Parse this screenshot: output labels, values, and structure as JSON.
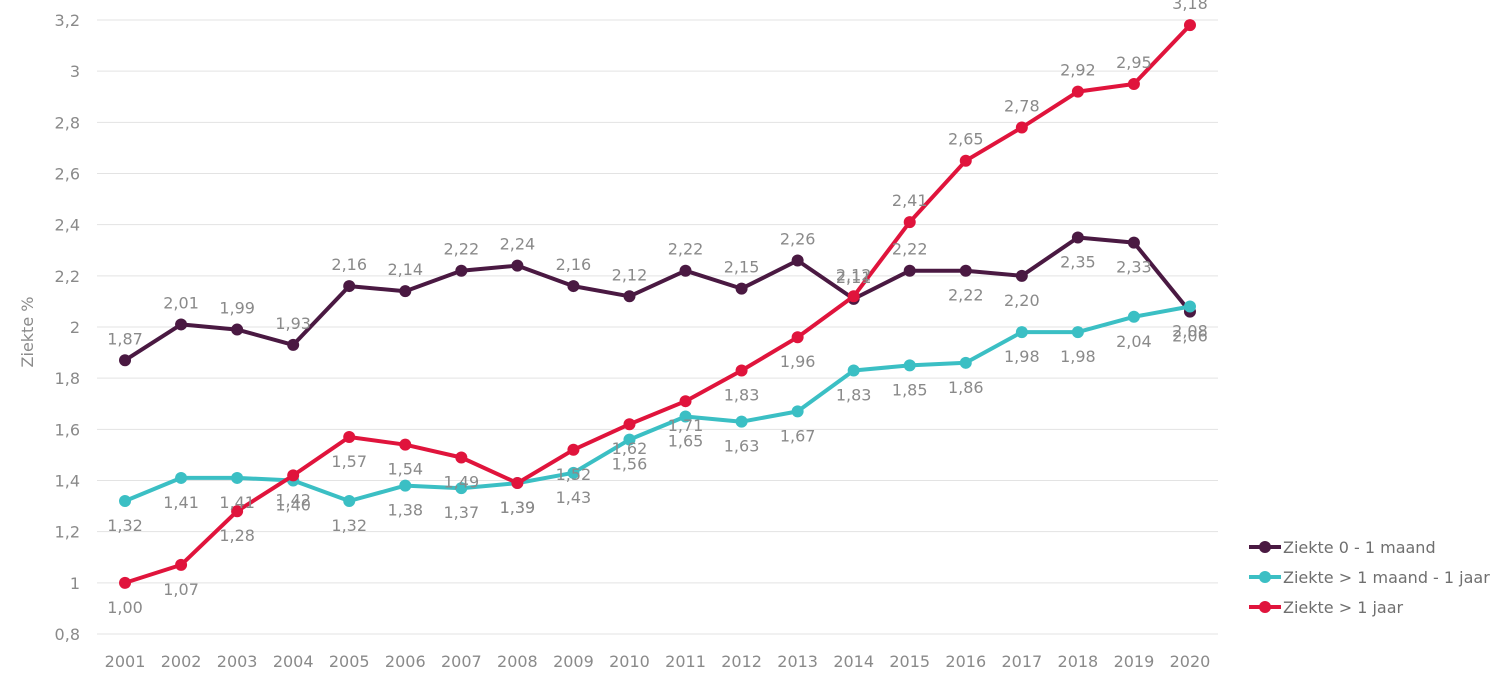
{
  "chart_data": {
    "type": "line",
    "title": "",
    "xlabel": "",
    "ylabel": "Ziekte %",
    "x": [
      "2001",
      "2002",
      "2003",
      "2004",
      "2005",
      "2006",
      "2007",
      "2008",
      "2009",
      "2010",
      "2011",
      "2012",
      "2013",
      "2014",
      "2015",
      "2016",
      "2017",
      "2018",
      "2019",
      "2020"
    ],
    "y_ticks": [
      "0,8",
      "1",
      "1,2",
      "1,4",
      "1,6",
      "1,8",
      "2",
      "2,2",
      "2,4",
      "2,6",
      "2,8",
      "3",
      "3,2"
    ],
    "ylim": [
      0.8,
      3.2
    ],
    "grid": "horizontal",
    "legend_position": "right",
    "series": [
      {
        "name": "Ziekte 0 - 1 maand",
        "color": "#4a1942",
        "values": [
          1.87,
          2.01,
          1.99,
          1.93,
          2.16,
          2.14,
          2.22,
          2.24,
          2.16,
          2.12,
          2.22,
          2.15,
          2.26,
          2.11,
          2.22,
          2.22,
          2.2,
          2.35,
          2.33,
          2.06
        ],
        "labels": [
          "1,87",
          "2,01",
          "1,99",
          "1,93",
          "2,16",
          "2,14",
          "2,22",
          "2,24",
          "2,16",
          "2,12",
          "2,22",
          "2,15",
          "2,26",
          "2,11",
          "2,22",
          "2,22",
          "2,20",
          "2,35",
          "2,33",
          "2,06"
        ]
      },
      {
        "name": "Ziekte > 1 maand - 1 jaar",
        "color": "#3bbfc4",
        "values": [
          1.32,
          1.41,
          1.41,
          1.4,
          1.32,
          1.38,
          1.37,
          1.39,
          1.43,
          1.56,
          1.65,
          1.63,
          1.67,
          1.83,
          1.85,
          1.86,
          1.98,
          1.98,
          2.04,
          2.08
        ],
        "labels": [
          "1,32",
          "1,41",
          "1,41",
          "1,40",
          "1,32",
          "1,38",
          "1,37",
          "1,39",
          "1,43",
          "1,56",
          "1,65",
          "1,63",
          "1,67",
          "1,83",
          "1,85",
          "1,86",
          "1,98",
          "1,98",
          "2,04",
          "2,08"
        ]
      },
      {
        "name": "Ziekte > 1 jaar",
        "color": "#e0143c",
        "values": [
          1.0,
          1.07,
          1.28,
          1.42,
          1.57,
          1.54,
          1.49,
          1.39,
          1.52,
          1.62,
          1.71,
          1.83,
          1.96,
          2.12,
          2.41,
          2.65,
          2.78,
          2.92,
          2.95,
          3.18
        ],
        "labels": [
          "1,00",
          "1,07",
          "1,28",
          "1,42",
          "1,57",
          "1,54",
          "1,49",
          "1,39",
          "1,52",
          "1,62",
          "1,71",
          "1,83",
          "1,96",
          "2,12",
          "2,41",
          "2,65",
          "2,78",
          "2,92",
          "2,95",
          "3,18"
        ]
      }
    ]
  }
}
